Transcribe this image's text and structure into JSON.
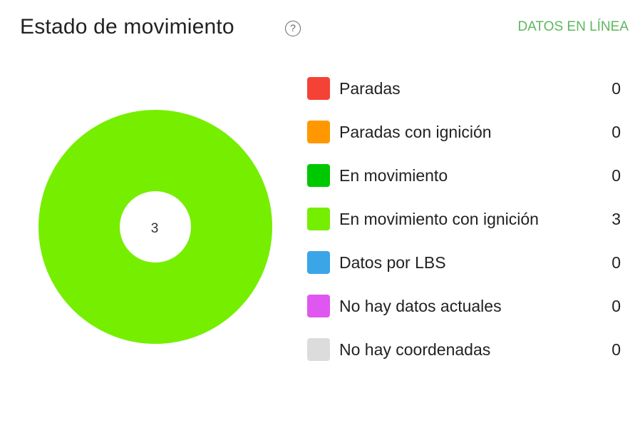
{
  "header": {
    "title": "Estado de movimiento",
    "help_glyph": "?",
    "help_icon": "question-circle-icon",
    "online_link": "DATOS EN LÍNEA"
  },
  "chart_data": {
    "type": "pie",
    "donut": true,
    "center_label": "3",
    "categories": [
      "Paradas",
      "Paradas con ignición",
      "En movimiento",
      "En movimiento con ignición",
      "Datos por LBS",
      "No hay datos actuales",
      "No hay coordenadas"
    ],
    "values": [
      0,
      0,
      0,
      3,
      0,
      0,
      0
    ],
    "colors": [
      "#f44336",
      "#ff9800",
      "#00c800",
      "#76ee00",
      "#3aa6e8",
      "#e056f0",
      "#dcdcdc"
    ],
    "legend_position": "right"
  },
  "legend": {
    "items": [
      {
        "label": "Paradas",
        "value": "0",
        "color": "#f44336"
      },
      {
        "label": "Paradas con ignición",
        "value": "0",
        "color": "#ff9800"
      },
      {
        "label": "En movimiento",
        "value": "0",
        "color": "#00c800"
      },
      {
        "label": "En movimiento con ignición",
        "value": "3",
        "color": "#76ee00"
      },
      {
        "label": "Datos por LBS",
        "value": "0",
        "color": "#3aa6e8"
      },
      {
        "label": "No hay datos actuales",
        "value": "0",
        "color": "#e056f0"
      },
      {
        "label": "No hay coordenadas",
        "value": "0",
        "color": "#dcdcdc"
      }
    ]
  }
}
